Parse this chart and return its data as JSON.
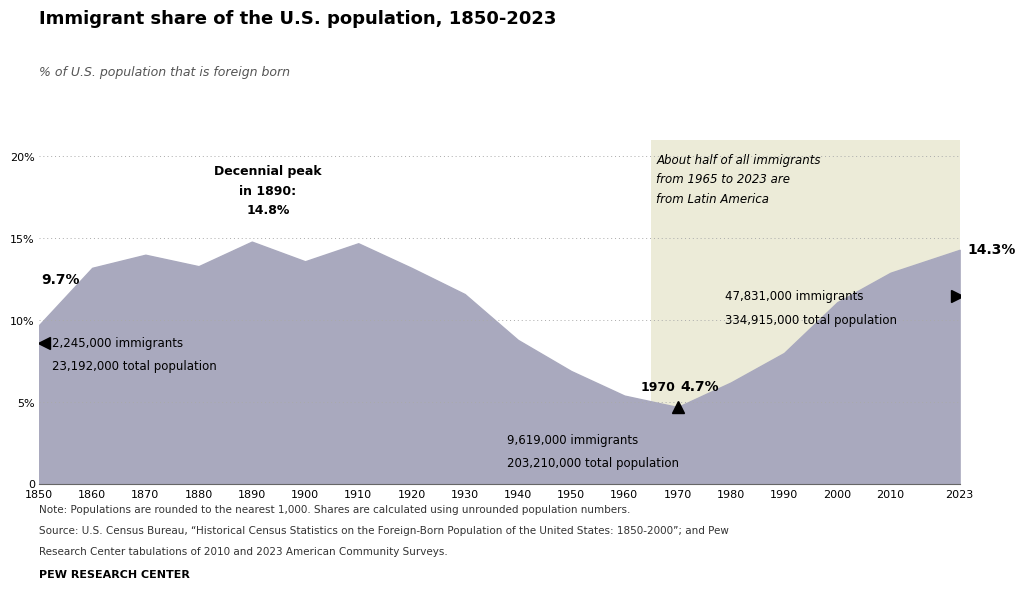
{
  "title": "Immigrant share of the U.S. population, 1850-2023",
  "subtitle": "% of U.S. population that is foreign born",
  "years": [
    1850,
    1860,
    1870,
    1880,
    1890,
    1900,
    1910,
    1920,
    1930,
    1940,
    1950,
    1960,
    1970,
    1980,
    1990,
    2000,
    2010,
    2023
  ],
  "values": [
    9.7,
    13.2,
    14.0,
    13.3,
    14.8,
    13.6,
    14.7,
    13.2,
    11.6,
    8.8,
    6.9,
    5.4,
    4.7,
    6.2,
    8.0,
    11.1,
    12.9,
    14.3
  ],
  "area_color": "#a9a9be",
  "background_color": "#ffffff",
  "highlight_bg_color": "#ecebd8",
  "highlight_start_year": 1965,
  "highlight_end_year": 2023,
  "ylim": [
    0,
    21
  ],
  "yticks": [
    0,
    5,
    10,
    15,
    20
  ],
  "xtick_years": [
    1850,
    1860,
    1870,
    1880,
    1890,
    1900,
    1910,
    1920,
    1930,
    1940,
    1950,
    1960,
    1970,
    1980,
    1990,
    2000,
    2010,
    2023
  ],
  "note_line1": "Note: Populations are rounded to the nearest 1,000. Shares are calculated using unrounded population numbers.",
  "note_line2": "Source: U.S. Census Bureau, “Historical Census Statistics on the Foreign-Born Population of the United States: 1850-2000”; and Pew",
  "note_line3": "Research Center tabulations of 2010 and 2023 American Community Surveys.",
  "source_bold": "PEW RESEARCH CENTER",
  "grid_color": "#aaaaaa",
  "annotation_1850_pct": "9.7%",
  "annotation_1850_detail_line1": "2,245,000 immigrants",
  "annotation_1850_detail_line2": "23,192,000 total population",
  "annotation_1890_line1": "Decennial peak",
  "annotation_1890_line2": "in 1890:",
  "annotation_1890_line3": "14.8%",
  "annotation_1970_pct": "4.7%",
  "annotation_1970_label": "1970",
  "annotation_1970_detail_line1": "9,619,000 immigrants",
  "annotation_1970_detail_line2": "203,210,000 total population",
  "annotation_2023_pct": "14.3%",
  "annotation_2023_detail_line1": "47,831,000 immigrants",
  "annotation_2023_detail_line2": "334,915,000 total population",
  "annotation_box_line1": "About half of all immigrants",
  "annotation_box_line2": "from 1965 to 2023 are",
  "annotation_box_line3": "from Latin America"
}
